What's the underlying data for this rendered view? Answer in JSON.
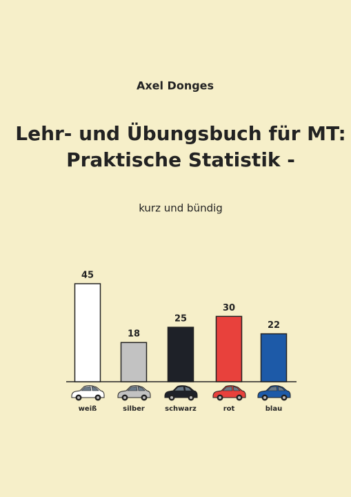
{
  "author": "Axel Donges",
  "title": [
    "Lehr- und Übungsbuch für MT:",
    "Praktische Statistik -"
  ],
  "subtitle": "kurz und bündig",
  "chart_data": {
    "type": "bar",
    "categories": [
      "weiß",
      "silber",
      "schwarz",
      "rot",
      "blau"
    ],
    "values": [
      45,
      18,
      25,
      30,
      22
    ],
    "colors": [
      "#ffffff",
      "#c2c2c2",
      "#1e2128",
      "#e8413c",
      "#1d5aa8"
    ]
  }
}
